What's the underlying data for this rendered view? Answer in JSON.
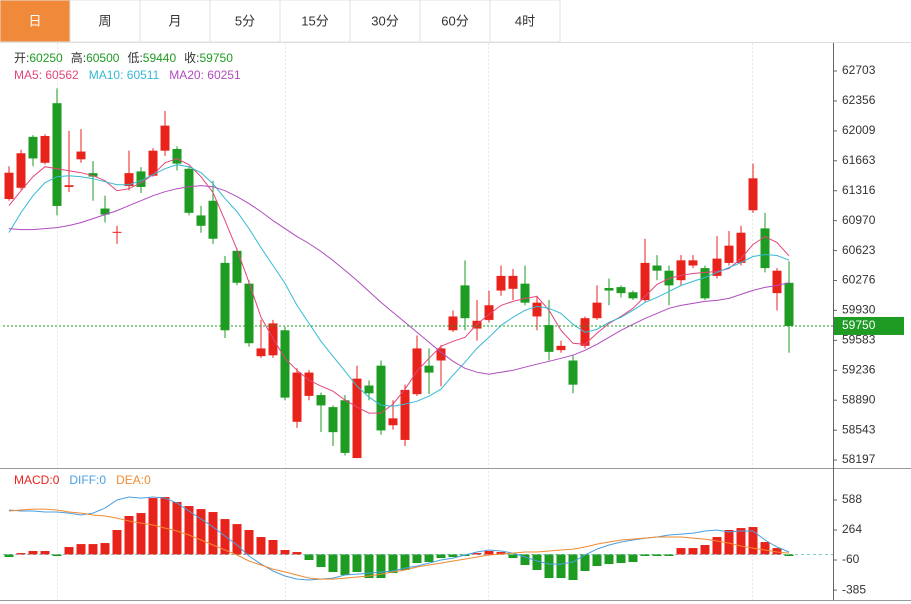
{
  "tabs": {
    "items": [
      "日",
      "周",
      "月",
      "5分",
      "15分",
      "30分",
      "60分",
      "4时"
    ],
    "active": 0,
    "active_color": "#f08a3a"
  },
  "chart_data": [
    {
      "type": "candlestick",
      "header_labels": [
        "开:",
        "高:",
        "低:",
        "收:"
      ],
      "legend_separator": ": ",
      "up_color": "#e8231c",
      "down_color": "#1e9b22",
      "open": [
        61220,
        61350,
        61940,
        61640,
        62330,
        61360,
        61680,
        61520,
        61110,
        60830,
        61370,
        61540,
        61490,
        61780,
        61800,
        61570,
        61030,
        61200,
        60480,
        60620,
        60240,
        59400,
        59410,
        59700,
        58640,
        58940,
        58950,
        58810,
        58890,
        58220,
        59060,
        59290,
        58600,
        58430,
        58960,
        59290,
        59350,
        59700,
        60220,
        59720,
        59820,
        60160,
        60180,
        60240,
        59860,
        59760,
        59470,
        59350,
        59520,
        59840,
        60190,
        60200,
        60140,
        60050,
        60450,
        60390,
        60280,
        60450,
        60420,
        60330,
        60480,
        60480,
        61090,
        60880,
        60130,
        60250
      ],
      "high": [
        61600,
        61790,
        61960,
        61970,
        62500,
        62010,
        62030,
        61660,
        61260,
        60910,
        61780,
        61590,
        61810,
        62240,
        61830,
        61600,
        61140,
        61430,
        60560,
        60650,
        60280,
        59820,
        59820,
        59740,
        59260,
        59240,
        58980,
        58830,
        58950,
        59290,
        59120,
        59350,
        58890,
        59070,
        59640,
        59490,
        59530,
        59930,
        60510,
        60050,
        60160,
        60450,
        60410,
        60450,
        60100,
        60050,
        59580,
        59410,
        59860,
        60220,
        60300,
        60220,
        60160,
        60760,
        60570,
        60450,
        60570,
        60570,
        60450,
        60790,
        60850,
        60910,
        61630,
        61060,
        60420,
        60500
      ],
      "low": [
        61200,
        61330,
        61600,
        61620,
        61030,
        61300,
        61640,
        61200,
        60950,
        60700,
        61320,
        61290,
        61480,
        61720,
        61550,
        61030,
        60830,
        60700,
        59610,
        60220,
        59510,
        59380,
        59380,
        58890,
        58570,
        58890,
        58520,
        58360,
        58250,
        58220,
        58890,
        58490,
        58550,
        58360,
        58940,
        58960,
        59050,
        59680,
        59700,
        59580,
        59790,
        60100,
        60050,
        59990,
        59700,
        59350,
        59440,
        58970,
        59490,
        59820,
        59990,
        60080,
        60050,
        60030,
        60280,
        59990,
        60220,
        60420,
        60050,
        60300,
        60450,
        60450,
        61060,
        60370,
        59930,
        59440
      ],
      "close": [
        61525,
        61750,
        61690,
        61950,
        61140,
        61380,
        61770,
        61480,
        61040,
        60840,
        61520,
        61360,
        61780,
        62070,
        61630,
        61060,
        60910,
        60760,
        59700,
        60250,
        59550,
        59490,
        59780,
        58920,
        59210,
        59210,
        58830,
        58520,
        58280,
        59140,
        58970,
        58540,
        58680,
        59010,
        59490,
        59210,
        59490,
        59860,
        59840,
        59810,
        59990,
        60330,
        60330,
        60020,
        60020,
        59450,
        59520,
        59070,
        59840,
        60020,
        60160,
        60130,
        60070,
        60480,
        60390,
        60220,
        60510,
        60510,
        60070,
        60530,
        60680,
        60830,
        61460,
        60420,
        60390,
        59750
      ],
      "series": [
        {
          "name": "MA5",
          "color": "#e2457c",
          "values": [
            61144,
            61317,
            61479,
            61594,
            61571,
            61548,
            61525,
            61490,
            61432,
            61317,
            61340,
            61409,
            61502,
            61640,
            61687,
            61617,
            61479,
            61294,
            60970,
            60635,
            60254,
            59850,
            59607,
            59376,
            59237,
            59122,
            59053,
            58995,
            58891,
            58810,
            58741,
            58741,
            58845,
            59018,
            59226,
            59376,
            59515,
            59572,
            59619,
            59769,
            59884,
            59988,
            60035,
            60069,
            60092,
            59931,
            59700,
            59549,
            59538,
            59665,
            59780,
            59861,
            59954,
            60092,
            60231,
            60300,
            60335,
            60358,
            60370,
            60381,
            60416,
            60531,
            60693,
            60785,
            60716,
            60562
          ]
        },
        {
          "name": "MA10",
          "color": "#36b9d5",
          "values": [
            60832,
            61063,
            61259,
            61409,
            61479,
            61490,
            61479,
            61456,
            61421,
            61386,
            61386,
            61432,
            61502,
            61571,
            61617,
            61594,
            61525,
            61398,
            61225,
            61074,
            60878,
            60658,
            60450,
            60243,
            59988,
            59780,
            59572,
            59399,
            59226,
            59053,
            58925,
            58833,
            58821,
            58845,
            58879,
            58937,
            59018,
            59180,
            59330,
            59492,
            59619,
            59757,
            59850,
            59931,
            59977,
            59954,
            59896,
            59769,
            59676,
            59711,
            59792,
            59850,
            59931,
            60023,
            60081,
            60150,
            60219,
            60266,
            60312,
            60370,
            60427,
            60485,
            60554,
            60578,
            60566,
            60511
          ]
        },
        {
          "name": "MA20",
          "color": "#b04cbf",
          "values": [
            60878,
            60866,
            60866,
            60878,
            60889,
            60913,
            60947,
            60993,
            61040,
            61086,
            61144,
            61201,
            61259,
            61305,
            61340,
            61363,
            61375,
            61363,
            61317,
            61248,
            61167,
            61074,
            60970,
            60878,
            60785,
            60705,
            60612,
            60508,
            60393,
            60277,
            60150,
            60023,
            59907,
            59792,
            59676,
            59561,
            59445,
            59341,
            59260,
            59214,
            59191,
            59214,
            59237,
            59272,
            59307,
            59341,
            59376,
            59411,
            59468,
            59538,
            59619,
            59700,
            59769,
            59838,
            59896,
            59954,
            59988,
            60011,
            60035,
            60046,
            60069,
            60115,
            60162,
            60196,
            60219,
            60251
          ]
        }
      ],
      "ylim": [
        58105,
        63027
      ],
      "yticks": [
        62703,
        62356,
        62009,
        61663,
        61316,
        60970,
        60623,
        60276,
        59930,
        59583,
        59236,
        58890,
        58543,
        58197
      ]
    },
    {
      "type": "macd",
      "legend_separator": ":",
      "up_color": "#e8231c",
      "down_color": "#1e9b22",
      "zero_line_color": "#7fcfcf",
      "series": [
        {
          "name": "MACD",
          "kind": "bar",
          "color": "#e8231c",
          "legend_value": 0,
          "values": [
            -28,
            15,
            37,
            37,
            -17,
            80,
            112,
            112,
            123,
            264,
            415,
            447,
            609,
            620,
            566,
            523,
            490,
            458,
            382,
            328,
            264,
            188,
            156,
            48,
            26,
            -60,
            -136,
            -190,
            -222,
            -190,
            -255,
            -255,
            -201,
            -168,
            -93,
            -82,
            -39,
            -28,
            -17,
            15,
            37,
            26,
            -39,
            -114,
            -168,
            -255,
            -255,
            -276,
            -179,
            -125,
            -104,
            -93,
            -82,
            -17,
            -17,
            -17,
            69,
            69,
            102,
            188,
            264,
            285,
            296,
            134,
            69,
            -17
          ]
        },
        {
          "name": "DIFF",
          "kind": "line",
          "color": "#4a9fe0",
          "legend_value": 0,
          "values": [
            480,
            469,
            469,
            458,
            458,
            447,
            426,
            447,
            501,
            588,
            620,
            609,
            620,
            609,
            555,
            469,
            382,
            296,
            199,
            102,
            -17,
            -104,
            -179,
            -233,
            -266,
            -276,
            -266,
            -255,
            -222,
            -212,
            -201,
            -190,
            -179,
            -147,
            -125,
            -93,
            -60,
            -39,
            -6,
            26,
            48,
            37,
            15,
            -28,
            -71,
            -104,
            -104,
            -82,
            -6,
            58,
            102,
            134,
            156,
            177,
            188,
            210,
            220,
            231,
            253,
            264,
            242,
            253,
            253,
            156,
            80,
            26
          ]
        },
        {
          "name": "DEA",
          "kind": "line",
          "color": "#f08a30",
          "legend_value": 0,
          "values": [
            469,
            480,
            490,
            490,
            480,
            458,
            447,
            426,
            415,
            393,
            361,
            339,
            318,
            285,
            253,
            210,
            156,
            102,
            48,
            -6,
            -71,
            -114,
            -158,
            -190,
            -222,
            -255,
            -266,
            -266,
            -255,
            -244,
            -233,
            -212,
            -190,
            -168,
            -136,
            -114,
            -93,
            -71,
            -50,
            -28,
            -6,
            4,
            15,
            26,
            26,
            37,
            48,
            58,
            80,
            112,
            134,
            156,
            166,
            177,
            188,
            188,
            188,
            177,
            166,
            145,
            123,
            91,
            69,
            48,
            26,
            15
          ]
        }
      ],
      "ylim": [
        -492,
        912
      ],
      "yticks": [
        588,
        264,
        -60,
        -385
      ]
    }
  ]
}
